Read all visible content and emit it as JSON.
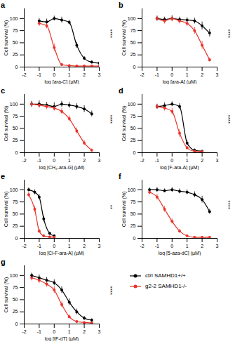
{
  "chart_data": [
    {
      "type": "line",
      "title": "a",
      "annotation": "****",
      "xlabel": "log [ara-C] (µM)",
      "ylabel": "Cell survival (%)",
      "xlim": [
        -2,
        3
      ],
      "xticks": [
        -2,
        -1,
        0,
        1,
        2,
        3
      ],
      "ylim": [
        0,
        120
      ],
      "yticks": [
        0,
        25,
        50,
        75,
        100
      ],
      "marker": "circle",
      "series": [
        {
          "name": "ctrl SAMHD1+/+",
          "color": "#000000",
          "x": [
            -1,
            -0.5,
            0,
            0.5,
            1,
            1.5,
            2,
            2.5,
            3
          ],
          "values": [
            95,
            93,
            100,
            97,
            92,
            45,
            18,
            10,
            8
          ],
          "errors": [
            5,
            6,
            5,
            6,
            5,
            6,
            4,
            3,
            3
          ]
        },
        {
          "name": "g2-2 SAMHD1-/-",
          "color": "#e8332a",
          "x": [
            -1,
            -0.5,
            0,
            0.5,
            1,
            1.5,
            2,
            2.5,
            3
          ],
          "values": [
            90,
            85,
            40,
            5,
            3,
            2,
            2,
            2,
            2
          ],
          "errors": [
            6,
            6,
            8,
            3,
            2,
            2,
            2,
            2,
            2
          ]
        }
      ]
    },
    {
      "type": "line",
      "title": "b",
      "annotation": "****",
      "xlabel": "log [ara-A] (µM)",
      "ylabel": "Cell survival (%)",
      "xlim": [
        -2,
        3
      ],
      "xticks": [
        -2,
        -1,
        0,
        1,
        2,
        3
      ],
      "ylim": [
        0,
        120
      ],
      "yticks": [
        0,
        25,
        50,
        75,
        100
      ],
      "marker": "circle",
      "series": [
        {
          "name": "ctrl SAMHD1+/+",
          "color": "#000000",
          "x": [
            -1,
            -0.5,
            0,
            0.5,
            1,
            1.5,
            2,
            2.5
          ],
          "values": [
            100,
            98,
            100,
            98,
            97,
            95,
            85,
            70
          ],
          "errors": [
            5,
            5,
            6,
            5,
            5,
            6,
            8,
            8
          ]
        },
        {
          "name": "g2-2 SAMHD1-/-",
          "color": "#e8332a",
          "x": [
            -1,
            -0.5,
            0,
            0.5,
            1,
            1.5,
            2,
            2.5
          ],
          "values": [
            100,
            95,
            100,
            95,
            90,
            75,
            45,
            15
          ],
          "errors": [
            5,
            6,
            5,
            6,
            6,
            7,
            8,
            4
          ]
        }
      ]
    },
    {
      "type": "line",
      "title": "c",
      "annotation": "****",
      "xlabel": "log [CH₂-ara-G] (µM)",
      "ylabel": "Cell survival (%)",
      "xlim": [
        -2,
        3
      ],
      "xticks": [
        -2,
        -1,
        0,
        1,
        2,
        3
      ],
      "ylim": [
        0,
        120
      ],
      "yticks": [
        0,
        25,
        50,
        75,
        100
      ],
      "marker": "circle",
      "series": [
        {
          "name": "ctrl SAMHD1+/+",
          "color": "#000000",
          "x": [
            -1.5,
            -1,
            -0.5,
            0,
            0.5,
            1,
            1.5,
            2,
            2.5
          ],
          "values": [
            100,
            100,
            98,
            95,
            100,
            98,
            95,
            90,
            80
          ],
          "errors": [
            6,
            7,
            6,
            8,
            6,
            6,
            6,
            7,
            6
          ]
        },
        {
          "name": "g2-2 SAMHD1-/-",
          "color": "#e8332a",
          "x": [
            -1.5,
            -1,
            -0.5,
            0,
            0.5,
            1,
            1.5,
            2,
            2.5
          ],
          "values": [
            100,
            98,
            95,
            92,
            85,
            70,
            45,
            20,
            5
          ],
          "errors": [
            5,
            6,
            6,
            6,
            6,
            6,
            6,
            5,
            3
          ]
        }
      ]
    },
    {
      "type": "line",
      "title": "d",
      "annotation": "****",
      "xlabel": "log [F-ara-A] (µM)",
      "ylabel": "Cell survival (%)",
      "xlim": [
        -2,
        3
      ],
      "xticks": [
        -2,
        -1,
        0,
        1,
        2,
        3
      ],
      "ylim": [
        0,
        120
      ],
      "yticks": [
        0,
        25,
        50,
        75,
        100
      ],
      "marker": "circle",
      "series": [
        {
          "name": "ctrl SAMHD1+/+",
          "color": "#000000",
          "x": [
            -1,
            -0.5,
            0,
            0.5,
            1,
            1.5,
            2
          ],
          "values": [
            95,
            97,
            100,
            95,
            20,
            5,
            3
          ],
          "errors": [
            5,
            6,
            5,
            6,
            5,
            3,
            2
          ]
        },
        {
          "name": "g2-2 SAMHD1-/-",
          "color": "#e8332a",
          "x": [
            -1,
            -0.5,
            0,
            0.5,
            1,
            1.5,
            2
          ],
          "values": [
            95,
            92,
            85,
            40,
            10,
            3,
            2
          ],
          "errors": [
            5,
            6,
            7,
            8,
            4,
            2,
            2
          ]
        }
      ]
    },
    {
      "type": "line",
      "title": "e",
      "annotation": "**",
      "xlabel": "log [Cl-F-ara-A] (µM)",
      "ylabel": "Cell survival (%)",
      "xlim": [
        -2,
        3
      ],
      "xticks": [
        -2,
        -1,
        0,
        1,
        2,
        3
      ],
      "ylim": [
        0,
        120
      ],
      "yticks": [
        0,
        25,
        50,
        75,
        100
      ],
      "marker": "circle",
      "series": [
        {
          "name": "ctrl SAMHD1+/+",
          "color": "#000000",
          "x": [
            -1.7,
            -1.3,
            -1,
            -0.7,
            -0.3,
            0
          ],
          "values": [
            100,
            95,
            85,
            40,
            10,
            5
          ],
          "errors": [
            4,
            5,
            5,
            6,
            3,
            2
          ]
        },
        {
          "name": "g2-2 SAMHD1-/-",
          "color": "#e8332a",
          "x": [
            -1.7,
            -1.3,
            -1,
            -0.7,
            -0.3,
            0
          ],
          "values": [
            90,
            60,
            15,
            5,
            3,
            2
          ],
          "errors": [
            5,
            6,
            4,
            2,
            2,
            2
          ]
        }
      ]
    },
    {
      "type": "line",
      "title": "f",
      "annotation": "****",
      "xlabel": "log [5-aza-dC] (µM)",
      "ylabel": "Cell survival (%)",
      "xlim": [
        -2,
        3
      ],
      "xticks": [
        -2,
        -1,
        0,
        1,
        2,
        3
      ],
      "ylim": [
        0,
        120
      ],
      "yticks": [
        0,
        25,
        50,
        75,
        100
      ],
      "marker": "circle",
      "series": [
        {
          "name": "ctrl SAMHD1+/+",
          "color": "#000000",
          "x": [
            -1.5,
            -1,
            -0.5,
            0,
            0.5,
            1,
            1.5,
            2,
            2.5
          ],
          "values": [
            100,
            100,
            98,
            100,
            97,
            95,
            90,
            80,
            55
          ],
          "errors": [
            4,
            5,
            4,
            5,
            5,
            5,
            6,
            7,
            5
          ]
        },
        {
          "name": "g2-2 SAMHD1-/-",
          "color": "#e8332a",
          "x": [
            -1.5,
            -1,
            -0.5,
            0,
            0.5,
            1,
            1.5,
            2,
            2.5
          ],
          "values": [
            95,
            85,
            60,
            35,
            15,
            5,
            2,
            2,
            2
          ],
          "errors": [
            5,
            6,
            6,
            5,
            4,
            2,
            2,
            2,
            2
          ]
        }
      ]
    },
    {
      "type": "line",
      "title": "g",
      "annotation": "****",
      "xlabel": "log [tF-dT] (µM)",
      "ylabel": "Cell survival (%)",
      "xlim": [
        -2,
        3
      ],
      "xticks": [
        -2,
        -1,
        0,
        1,
        2,
        3
      ],
      "ylim": [
        0,
        120
      ],
      "yticks": [
        0,
        25,
        50,
        75,
        100
      ],
      "marker": "circle",
      "series": [
        {
          "name": "ctrl SAMHD1+/+",
          "color": "#000000",
          "x": [
            -1.5,
            -1,
            -0.5,
            0,
            0.5,
            1,
            1.5,
            2,
            2.5
          ],
          "values": [
            100,
            95,
            90,
            85,
            70,
            45,
            25,
            12,
            8
          ],
          "errors": [
            5,
            6,
            6,
            6,
            7,
            7,
            6,
            4,
            3
          ]
        },
        {
          "name": "g2-2 SAMHD1-/-",
          "color": "#e8332a",
          "x": [
            -1.5,
            -1,
            -0.5,
            0,
            0.5,
            1,
            1.5,
            2,
            2.5
          ],
          "values": [
            95,
            90,
            82,
            70,
            40,
            15,
            5,
            3,
            2
          ],
          "errors": [
            6,
            6,
            6,
            7,
            6,
            4,
            2,
            2,
            2
          ]
        }
      ]
    }
  ]
}
